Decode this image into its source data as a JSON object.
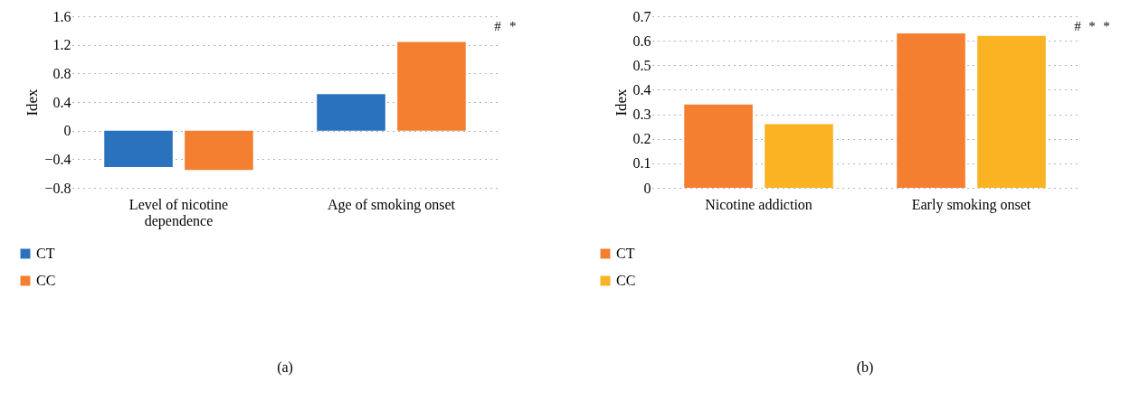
{
  "chart_data": [
    {
      "type": "bar",
      "categories": [
        "Level of nicotine dependence",
        "Age of smoking onset"
      ],
      "ylabel": "Idex",
      "ylim": [
        -0.8,
        1.6
      ],
      "yticks": [
        -0.8,
        -0.4,
        0,
        0.4,
        0.8,
        1.2,
        1.6
      ],
      "grid": "y",
      "legend": "bottom left",
      "series": [
        {
          "name": "CT",
          "color": "#2a72be",
          "values": [
            -0.51,
            0.51
          ]
        },
        {
          "name": "CC",
          "color": "#f47f30",
          "values": [
            -0.55,
            1.24
          ]
        }
      ],
      "annotations": [
        "#",
        "*",
        "(a)"
      ]
    },
    {
      "type": "bar",
      "categories": [
        "Nicotine addiction",
        "Early smoking onset"
      ],
      "ylabel": "Idex",
      "ylim": [
        0,
        0.7
      ],
      "yticks": [
        0,
        0.1,
        0.2,
        0.3,
        0.4,
        0.5,
        0.6,
        0.7
      ],
      "grid": "y",
      "legend": "bottom left",
      "series": [
        {
          "name": "CT",
          "color": "#f47f30",
          "values": [
            0.34,
            0.63
          ]
        },
        {
          "name": "CC",
          "color": "#fbb323",
          "values": [
            0.26,
            0.62
          ]
        }
      ],
      "annotations": [
        "#",
        "*",
        "*",
        "(b)"
      ]
    }
  ]
}
